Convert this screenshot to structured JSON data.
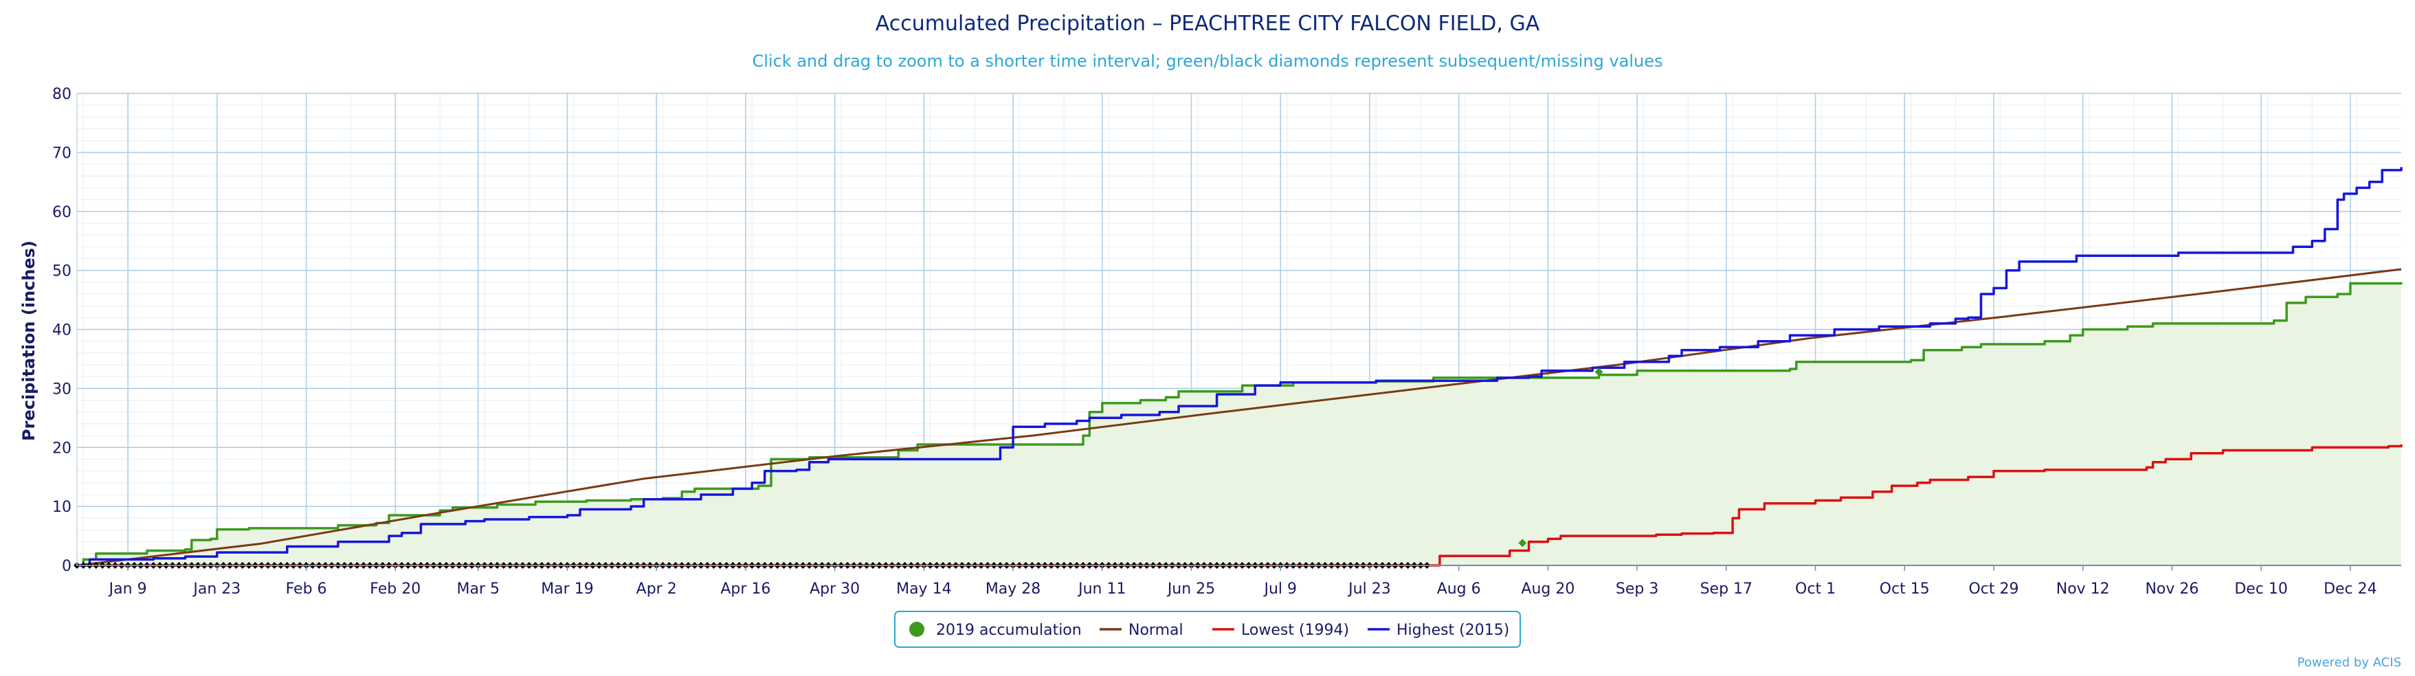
{
  "chart_data": {
    "type": "line",
    "title": "Accumulated Precipitation – PEACHTREE CITY FALCON FIELD, GA",
    "subtitle": "Click and drag to zoom to a shorter time interval; green/black diamonds represent subsequent/missing values",
    "ylabel": "Precipitation (inches)",
    "xlabel": "",
    "ylim": [
      0,
      80
    ],
    "yticks": [
      0,
      10,
      20,
      30,
      40,
      50,
      60,
      70,
      80
    ],
    "x_range_days": [
      1,
      366
    ],
    "xticks": [
      {
        "day": 9,
        "label": "Jan 9"
      },
      {
        "day": 23,
        "label": "Jan 23"
      },
      {
        "day": 37,
        "label": "Feb 6"
      },
      {
        "day": 51,
        "label": "Feb 20"
      },
      {
        "day": 64,
        "label": "Mar 5"
      },
      {
        "day": 78,
        "label": "Mar 19"
      },
      {
        "day": 92,
        "label": "Apr 2"
      },
      {
        "day": 106,
        "label": "Apr 16"
      },
      {
        "day": 120,
        "label": "Apr 30"
      },
      {
        "day": 134,
        "label": "May 14"
      },
      {
        "day": 148,
        "label": "May 28"
      },
      {
        "day": 162,
        "label": "Jun 11"
      },
      {
        "day": 176,
        "label": "Jun 25"
      },
      {
        "day": 190,
        "label": "Jul 9"
      },
      {
        "day": 204,
        "label": "Jul 23"
      },
      {
        "day": 218,
        "label": "Aug 6"
      },
      {
        "day": 232,
        "label": "Aug 20"
      },
      {
        "day": 246,
        "label": "Sep 3"
      },
      {
        "day": 260,
        "label": "Sep 17"
      },
      {
        "day": 274,
        "label": "Oct 1"
      },
      {
        "day": 288,
        "label": "Oct 15"
      },
      {
        "day": 302,
        "label": "Oct 29"
      },
      {
        "day": 316,
        "label": "Nov 12"
      },
      {
        "day": 330,
        "label": "Nov 26"
      },
      {
        "day": 344,
        "label": "Dec 10"
      },
      {
        "day": 358,
        "label": "Dec 24"
      }
    ],
    "grid": true,
    "legend_position": "bottom-center",
    "series": [
      {
        "name": "2019 accumulation",
        "color": "#3c9a1e",
        "fill": "#eaf4e3",
        "style": "step",
        "points": [
          [
            1,
            0
          ],
          [
            2,
            1
          ],
          [
            4,
            2
          ],
          [
            11,
            2
          ],
          [
            12,
            2.5
          ],
          [
            18,
            2.7
          ],
          [
            19,
            4.3
          ],
          [
            22,
            4.5
          ],
          [
            23,
            6.1
          ],
          [
            28,
            6.3
          ],
          [
            40,
            6.3
          ],
          [
            42,
            6.8
          ],
          [
            48,
            7.2
          ],
          [
            50,
            8.5
          ],
          [
            58,
            9.3
          ],
          [
            60,
            9.8
          ],
          [
            67,
            10.3
          ],
          [
            73,
            10.8
          ],
          [
            81,
            11
          ],
          [
            88,
            11.2
          ],
          [
            93,
            11.4
          ],
          [
            96,
            12.5
          ],
          [
            98,
            13
          ],
          [
            108,
            13.5
          ],
          [
            110,
            18
          ],
          [
            116,
            18.3
          ],
          [
            130,
            19.5
          ],
          [
            133,
            20.5
          ],
          [
            156,
            20.5
          ],
          [
            159,
            22
          ],
          [
            160,
            26
          ],
          [
            162,
            27.5
          ],
          [
            168,
            28
          ],
          [
            172,
            28.5
          ],
          [
            174,
            29.5
          ],
          [
            184,
            30.5
          ],
          [
            192,
            31
          ],
          [
            205,
            31.2
          ],
          [
            214,
            31.8
          ],
          [
            240,
            32.3
          ],
          [
            246,
            33
          ],
          [
            270,
            33.3
          ],
          [
            271,
            34.5
          ],
          [
            289,
            34.8
          ],
          [
            291,
            36.5
          ],
          [
            297,
            37
          ],
          [
            300,
            37.5
          ],
          [
            310,
            38
          ],
          [
            314,
            39
          ],
          [
            316,
            40
          ],
          [
            323,
            40.5
          ],
          [
            327,
            41
          ],
          [
            346,
            41.5
          ],
          [
            348,
            44.5
          ],
          [
            351,
            45.5
          ],
          [
            356,
            46
          ],
          [
            358,
            47.8
          ],
          [
            366,
            48
          ]
        ]
      },
      {
        "name": "Normal",
        "color": "#7a3a14",
        "style": "line",
        "points": [
          [
            1,
            0
          ],
          [
            30,
            3.7
          ],
          [
            60,
            9.3
          ],
          [
            90,
            14.7
          ],
          [
            120,
            18.5
          ],
          [
            151,
            22
          ],
          [
            181,
            26
          ],
          [
            212,
            30
          ],
          [
            243,
            34
          ],
          [
            273,
            38.5
          ],
          [
            304,
            42.2
          ],
          [
            334,
            46
          ],
          [
            366,
            50.2
          ]
        ]
      },
      {
        "name": "Lowest (1994)",
        "color": "#dd1111",
        "style": "step",
        "points": [
          [
            1,
            0
          ],
          [
            213,
            0
          ],
          [
            215,
            1.6
          ],
          [
            224,
            1.6
          ],
          [
            226,
            2.5
          ],
          [
            229,
            4
          ],
          [
            232,
            4.5
          ],
          [
            234,
            5
          ],
          [
            249,
            5.2
          ],
          [
            253,
            5.4
          ],
          [
            258,
            5.5
          ],
          [
            261,
            8
          ],
          [
            262,
            9.5
          ],
          [
            266,
            10.5
          ],
          [
            274,
            11
          ],
          [
            278,
            11.5
          ],
          [
            283,
            12.5
          ],
          [
            286,
            13.5
          ],
          [
            290,
            14
          ],
          [
            292,
            14.5
          ],
          [
            298,
            15
          ],
          [
            302,
            16
          ],
          [
            310,
            16.2
          ],
          [
            326,
            16.6
          ],
          [
            327,
            17.5
          ],
          [
            329,
            18
          ],
          [
            333,
            19
          ],
          [
            338,
            19.5
          ],
          [
            350,
            19.5
          ],
          [
            352,
            20
          ],
          [
            364,
            20.2
          ],
          [
            366,
            20.5
          ]
        ]
      },
      {
        "name": "Highest (2015)",
        "color": "#1616dd",
        "style": "step",
        "points": [
          [
            1,
            0
          ],
          [
            3,
            1
          ],
          [
            10,
            1
          ],
          [
            13,
            1.2
          ],
          [
            18,
            1.5
          ],
          [
            23,
            2.2
          ],
          [
            32,
            2.2
          ],
          [
            34,
            3.2
          ],
          [
            40,
            3.2
          ],
          [
            42,
            4
          ],
          [
            48,
            4
          ],
          [
            50,
            5
          ],
          [
            52,
            5.5
          ],
          [
            55,
            7
          ],
          [
            62,
            7.5
          ],
          [
            65,
            7.8
          ],
          [
            72,
            8.2
          ],
          [
            78,
            8.5
          ],
          [
            80,
            9.5
          ],
          [
            88,
            10
          ],
          [
            90,
            11.2
          ],
          [
            99,
            12
          ],
          [
            104,
            13
          ],
          [
            107,
            14
          ],
          [
            109,
            16
          ],
          [
            114,
            16.2
          ],
          [
            116,
            17.5
          ],
          [
            119,
            18
          ],
          [
            144,
            18
          ],
          [
            146,
            20
          ],
          [
            148,
            23.5
          ],
          [
            153,
            24
          ],
          [
            158,
            24.5
          ],
          [
            160,
            25
          ],
          [
            165,
            25.5
          ],
          [
            171,
            26
          ],
          [
            174,
            27
          ],
          [
            180,
            29
          ],
          [
            186,
            30.5
          ],
          [
            190,
            31
          ],
          [
            205,
            31.3
          ],
          [
            224,
            31.8
          ],
          [
            229,
            32
          ],
          [
            231,
            33
          ],
          [
            239,
            33.5
          ],
          [
            244,
            34.5
          ],
          [
            251,
            35.5
          ],
          [
            253,
            36.5
          ],
          [
            259,
            37
          ],
          [
            265,
            38
          ],
          [
            270,
            39
          ],
          [
            277,
            40
          ],
          [
            284,
            40.5
          ],
          [
            292,
            41
          ],
          [
            296,
            41.8
          ],
          [
            298,
            42
          ],
          [
            300,
            46
          ],
          [
            302,
            47
          ],
          [
            304,
            50
          ],
          [
            306,
            51.5
          ],
          [
            315,
            52.5
          ],
          [
            329,
            52.5
          ],
          [
            331,
            53
          ],
          [
            346,
            53
          ],
          [
            349,
            54
          ],
          [
            352,
            55
          ],
          [
            354,
            57
          ],
          [
            356,
            62
          ],
          [
            357,
            63
          ],
          [
            359,
            64
          ],
          [
            361,
            65
          ],
          [
            363,
            67
          ],
          [
            366,
            67.5
          ]
        ]
      },
      {
        "name": "missing values",
        "color": "#000000",
        "style": "diamonds",
        "range": [
          1,
          213
        ]
      }
    ]
  },
  "legend": {
    "items": [
      {
        "label": "2019 accumulation",
        "color": "#3c9a1e",
        "marker": "dot"
      },
      {
        "label": "Normal",
        "color": "#7a3a14",
        "marker": "line"
      },
      {
        "label": "Lowest (1994)",
        "color": "#dd1111",
        "marker": "line"
      },
      {
        "label": "Highest (2015)",
        "color": "#1616dd",
        "marker": "line"
      }
    ]
  },
  "credit": "Powered by ACIS"
}
